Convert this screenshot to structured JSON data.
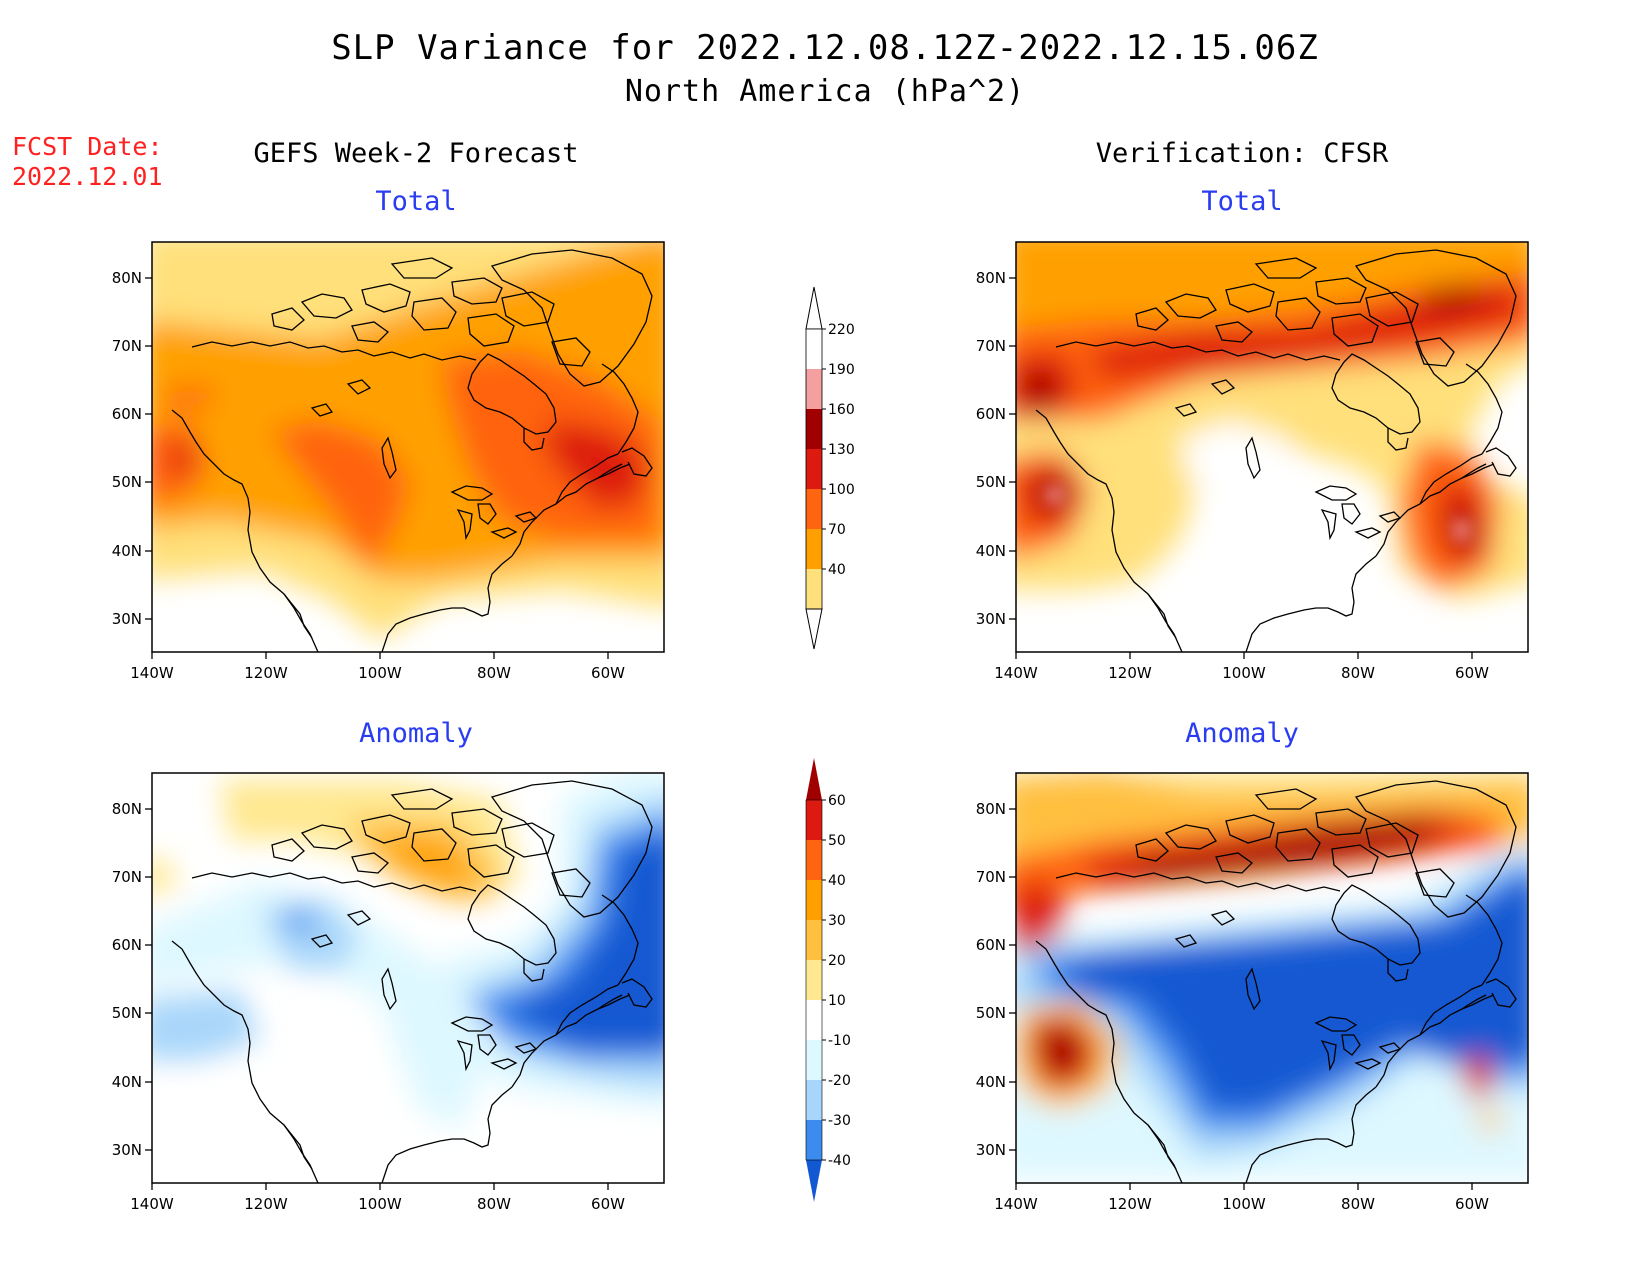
{
  "title": {
    "line1": "SLP Variance for 2022.12.08.12Z-2022.12.15.06Z",
    "line2": "North America (hPa^2)"
  },
  "fcst": {
    "label": "FCST Date:",
    "date": "2022.12.01"
  },
  "columns": {
    "left": "GEFS Week-2 Forecast",
    "right": "Verification: CFSR"
  },
  "panels": {
    "top_left": "Total",
    "top_right": "Total",
    "bottom_left": "Anomaly",
    "bottom_right": "Anomaly"
  },
  "axes": {
    "lat_labels": [
      "80N",
      "70N",
      "60N",
      "50N",
      "40N",
      "30N"
    ],
    "lon_labels": [
      "140W",
      "120W",
      "100W",
      "80W",
      "60W"
    ]
  },
  "colorbars": {
    "total": {
      "levels": [
        "220",
        "190",
        "160",
        "130",
        "100",
        "70",
        "40"
      ],
      "colors": [
        "#ffffff",
        "#f5a0a0",
        "#a00000",
        "#dd1a10",
        "#ff6410",
        "#ffa000",
        "#ffe07a"
      ]
    },
    "anomaly": {
      "levels": [
        "60",
        "50",
        "40",
        "30",
        "20",
        "10",
        "-10",
        "-20",
        "-30",
        "-40"
      ],
      "colors": [
        "#a00000",
        "#dd1a10",
        "#ff6410",
        "#ffa000",
        "#ffc040",
        "#ffe890",
        "#ffffff",
        "#def8ff",
        "#a8d6fa",
        "#3c8cf0",
        "#1258d2"
      ]
    }
  }
}
